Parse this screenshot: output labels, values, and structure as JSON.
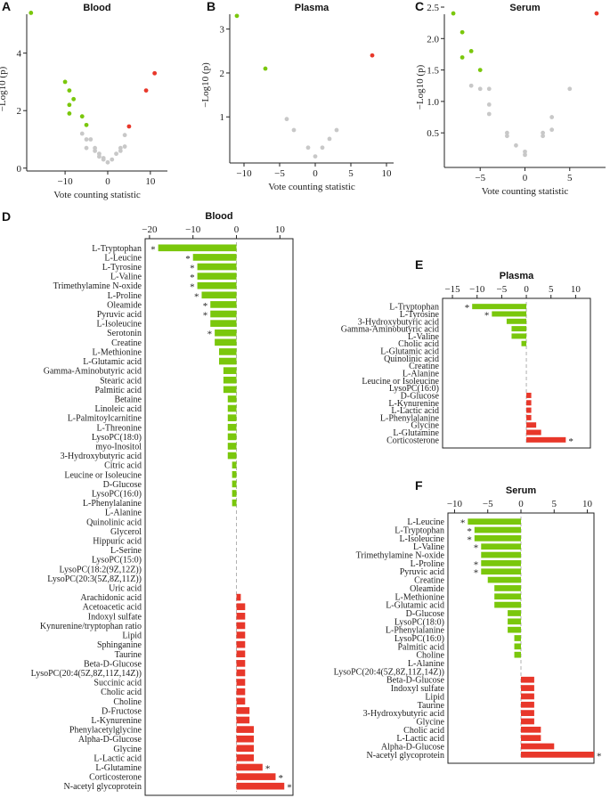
{
  "colors": {
    "down": "#7ac70c",
    "up": "#e8372a",
    "ns": "#c8c8c8",
    "axis": "#222222",
    "dash": "#b0b0b0"
  },
  "chart_data": [
    {
      "id": "A",
      "panel_label": "A",
      "type": "scatter",
      "title": "Blood",
      "xlabel": "Vote counting statistic",
      "ylabel": "−Log10 (p)",
      "xlim": [
        -19,
        14
      ],
      "ylim": [
        -0.1,
        5.6
      ],
      "xticks": [
        -10,
        0,
        10
      ],
      "xtick_labels": [
        "−10",
        "0",
        "10"
      ],
      "yticks": [
        0,
        2,
        4
      ],
      "ytick_labels": [
        "0",
        "2",
        "4"
      ],
      "points": [
        {
          "x": -18,
          "y": 5.4,
          "c": "down"
        },
        {
          "x": -10,
          "y": 3.0,
          "c": "down"
        },
        {
          "x": -9,
          "y": 2.7,
          "c": "down"
        },
        {
          "x": -8,
          "y": 2.4,
          "c": "down"
        },
        {
          "x": -9,
          "y": 2.2,
          "c": "down"
        },
        {
          "x": -9,
          "y": 1.9,
          "c": "down"
        },
        {
          "x": -6,
          "y": 1.8,
          "c": "down"
        },
        {
          "x": -5,
          "y": 1.5,
          "c": "down"
        },
        {
          "x": 11,
          "y": 3.3,
          "c": "up"
        },
        {
          "x": 9,
          "y": 2.7,
          "c": "up"
        },
        {
          "x": 5,
          "y": 1.45,
          "c": "up"
        },
        {
          "x": -6,
          "y": 1.2,
          "c": "ns"
        },
        {
          "x": -5,
          "y": 1.0,
          "c": "ns"
        },
        {
          "x": -4,
          "y": 1.0,
          "c": "ns"
        },
        {
          "x": -5,
          "y": 0.7,
          "c": "ns"
        },
        {
          "x": -3,
          "y": 0.7,
          "c": "ns"
        },
        {
          "x": -3,
          "y": 0.6,
          "c": "ns"
        },
        {
          "x": -2,
          "y": 0.5,
          "c": "ns"
        },
        {
          "x": -2,
          "y": 0.4,
          "c": "ns"
        },
        {
          "x": -1,
          "y": 0.35,
          "c": "ns"
        },
        {
          "x": -1,
          "y": 0.3,
          "c": "ns"
        },
        {
          "x": 0,
          "y": 0.2,
          "c": "ns"
        },
        {
          "x": 1,
          "y": 0.3,
          "c": "ns"
        },
        {
          "x": 2,
          "y": 0.5,
          "c": "ns"
        },
        {
          "x": 3,
          "y": 0.7,
          "c": "ns"
        },
        {
          "x": 4,
          "y": 0.75,
          "c": "ns"
        },
        {
          "x": 4,
          "y": 1.15,
          "c": "ns"
        },
        {
          "x": 3,
          "y": 0.6,
          "c": "ns"
        }
      ]
    },
    {
      "id": "B",
      "panel_label": "B",
      "type": "scatter",
      "title": "Plasma",
      "xlabel": "Vote counting statistic",
      "ylabel": "−Log10 (p)",
      "xlim": [
        -12,
        11
      ],
      "ylim": [
        -0.05,
        3.5
      ],
      "xticks": [
        -10,
        -5,
        0,
        5,
        10
      ],
      "xtick_labels": [
        "−10",
        "−5",
        "0",
        "5",
        "10"
      ],
      "yticks": [
        1,
        2,
        3
      ],
      "ytick_labels": [
        "1",
        "2",
        "3"
      ],
      "points": [
        {
          "x": -11,
          "y": 3.3,
          "c": "down"
        },
        {
          "x": -7,
          "y": 2.1,
          "c": "down"
        },
        {
          "x": 8,
          "y": 2.4,
          "c": "up"
        },
        {
          "x": -4,
          "y": 0.95,
          "c": "ns"
        },
        {
          "x": -3,
          "y": 0.7,
          "c": "ns"
        },
        {
          "x": -1,
          "y": 0.3,
          "c": "ns"
        },
        {
          "x": 0,
          "y": 0.1,
          "c": "ns"
        },
        {
          "x": 1,
          "y": 0.3,
          "c": "ns"
        },
        {
          "x": 2,
          "y": 0.5,
          "c": "ns"
        },
        {
          "x": 3,
          "y": 0.7,
          "c": "ns"
        }
      ]
    },
    {
      "id": "C",
      "panel_label": "C",
      "type": "scatter",
      "title": "Serum",
      "xlabel": "Vote counting statistic",
      "ylabel": "−Log10 (p)",
      "xlim": [
        -9,
        9
      ],
      "ylim": [
        -0.05,
        2.5
      ],
      "xticks": [
        -5,
        0,
        5
      ],
      "xtick_labels": [
        "−5",
        "0",
        "5"
      ],
      "yticks": [
        0.5,
        1.0,
        1.5,
        2.0,
        2.5
      ],
      "ytick_labels": [
        "0.5",
        "1.0",
        "1.5",
        "2.0",
        "2.5"
      ],
      "points": [
        {
          "x": -8,
          "y": 2.4,
          "c": "down"
        },
        {
          "x": -7,
          "y": 2.1,
          "c": "down"
        },
        {
          "x": -6,
          "y": 1.8,
          "c": "down"
        },
        {
          "x": -7,
          "y": 1.7,
          "c": "down"
        },
        {
          "x": -5,
          "y": 1.5,
          "c": "down"
        },
        {
          "x": 8,
          "y": 2.4,
          "c": "up"
        },
        {
          "x": -6,
          "y": 1.25,
          "c": "ns"
        },
        {
          "x": -5,
          "y": 1.2,
          "c": "ns"
        },
        {
          "x": -4,
          "y": 1.2,
          "c": "ns"
        },
        {
          "x": -4,
          "y": 0.95,
          "c": "ns"
        },
        {
          "x": -4,
          "y": 0.8,
          "c": "ns"
        },
        {
          "x": -2,
          "y": 0.5,
          "c": "ns"
        },
        {
          "x": -2,
          "y": 0.45,
          "c": "ns"
        },
        {
          "x": -1,
          "y": 0.3,
          "c": "ns"
        },
        {
          "x": 0,
          "y": 0.2,
          "c": "ns"
        },
        {
          "x": 0,
          "y": 0.15,
          "c": "ns"
        },
        {
          "x": 2,
          "y": 0.5,
          "c": "ns"
        },
        {
          "x": 2,
          "y": 0.45,
          "c": "ns"
        },
        {
          "x": 3,
          "y": 0.75,
          "c": "ns"
        },
        {
          "x": 3,
          "y": 0.55,
          "c": "ns"
        },
        {
          "x": 5,
          "y": 1.2,
          "c": "ns"
        }
      ]
    },
    {
      "id": "D",
      "panel_label": "D",
      "type": "bar",
      "orientation": "horizontal",
      "title": "Blood",
      "xlim": [
        -21,
        13
      ],
      "xticks": [
        -20,
        -10,
        0,
        10
      ],
      "xtick_labels": [
        "−20",
        "−10",
        "0",
        "10"
      ],
      "categories": [
        "L-Tryptophan",
        "L-Leucine",
        "L-Tyrosine",
        "L-Valine",
        "Trimethylamine N-oxide",
        "L-Proline",
        "Oleamide",
        "Pyruvic acid",
        "L-Isoleucine",
        "Serotonin",
        "Creatine",
        "L-Methionine",
        "L-Glutamic acid",
        "Gamma-Aminobutyric acid",
        "Stearic acid",
        "Palmitic acid",
        "Betaine",
        "Linoleic acid",
        "L-Palmitoylcarnitine",
        "L-Threonine",
        "LysoPC(18:0)",
        "myo-Inositol",
        "3-Hydroxybutyric acid",
        "Citric acid",
        "Leucine or Isoleucine",
        "D-Glucose",
        "LysoPC(16:0)",
        "L-Phenylalanine",
        "L-Alanine",
        "Quinolinic acid",
        "Glycerol",
        "Hippuric acid",
        "L-Serine",
        "LysoPC(15:0)",
        "LysoPC(18:2(9Z,12Z))",
        "LysoPC(20:3(5Z,8Z,11Z))",
        "Uric acid",
        "Arachidonic acid",
        "Acetoacetic acid",
        "Indoxyl sulfate",
        "Kynurenine/tryptophan ratio",
        "Lipid",
        "Sphinganine",
        "Taurine",
        "Beta-D-Glucose",
        "LysoPC(20:4(5Z,8Z,11Z,14Z))",
        "Succinic acid",
        "Cholic acid",
        "Choline",
        "D-Fructose",
        "L-Kynurenine",
        "Phenylacetylglycine",
        "Alpha-D-Glucose",
        "Glycine",
        "L-Lactic acid",
        "L-Glutamine",
        "Corticosterone",
        "N-acetyl glycoprotein"
      ],
      "values": [
        -18,
        -10,
        -9,
        -9,
        -9,
        -8,
        -6,
        -6,
        -6,
        -5,
        -5,
        -4,
        -4,
        -3,
        -3,
        -3,
        -2,
        -2,
        -2,
        -2,
        -2,
        -2,
        -2,
        -1,
        -1,
        -1,
        -1,
        -1,
        0,
        0,
        0,
        0,
        0,
        0,
        0,
        0,
        0,
        1,
        2,
        2,
        2,
        2,
        2,
        2,
        2,
        2,
        2,
        2,
        2,
        3,
        3,
        4,
        4,
        4,
        4,
        6,
        9,
        11
      ],
      "significant": [
        "L-Tryptophan",
        "L-Leucine",
        "L-Tyrosine",
        "L-Valine",
        "Trimethylamine N-oxide",
        "L-Proline",
        "Oleamide",
        "Pyruvic acid",
        "Serotonin",
        "L-Glutamine",
        "Corticosterone",
        "N-acetyl glycoprotein"
      ],
      "significant_marker": "*"
    },
    {
      "id": "E",
      "panel_label": "E",
      "type": "bar",
      "orientation": "horizontal",
      "title": "Plasma",
      "xlim": [
        -17,
        13
      ],
      "xticks": [
        -15,
        -10,
        -5,
        0,
        5,
        10
      ],
      "xtick_labels": [
        "−15",
        "−10",
        "−5",
        "0",
        "5",
        "10"
      ],
      "categories": [
        "L-Tryptophan",
        "L-Tyrosine",
        "3-Hydroxybutyric acid",
        "Gamma-Aminobutyric acid",
        "L-Valine",
        "Cholic acid",
        "L-Glutamic acid",
        "Quinolinic acid",
        "Creatine",
        "L-Alanine",
        "Leucine or Isoleucine",
        "LysoPC(16:0)",
        "D-Glucose",
        "L-Kynurenine",
        "L-Lactic acid",
        "L-Phenylalanine",
        "Glycine",
        "L-Glutamine",
        "Corticosterone"
      ],
      "values": [
        -11,
        -7,
        -4,
        -3,
        -3,
        -1,
        0,
        0,
        0,
        0,
        0,
        0,
        1,
        1,
        1,
        1,
        2,
        3,
        8
      ],
      "significant": [
        "L-Tryptophan",
        "L-Tyrosine",
        "Corticosterone"
      ],
      "significant_marker": "*"
    },
    {
      "id": "F",
      "panel_label": "F",
      "type": "bar",
      "orientation": "horizontal",
      "title": "Serum",
      "xlim": [
        -11,
        11
      ],
      "xticks": [
        -10,
        -5,
        0,
        5,
        10
      ],
      "xtick_labels": [
        "−10",
        "−5",
        "0",
        "5",
        "10"
      ],
      "categories": [
        "L-Leucine",
        "L-Tryptophan",
        "L-Isoleucine",
        "L-Valine",
        "Trimethylamine N-oxide",
        "L-Proline",
        "Pyruvic acid",
        "Creatine",
        "Oleamide",
        "L-Methionine",
        "L-Glutamic acid",
        "D-Glucose",
        "LysoPC(18:0)",
        "L-Phenylalanine",
        "LysoPC(16:0)",
        "Palmitic acid",
        "Choline",
        "L-Alanine",
        "LysoPC(20:4(5Z,8Z,11Z,14Z))",
        "Beta-D-Glucose",
        "Indoxyl sulfate",
        "Lipid",
        "Taurine",
        "3-Hydroxybutyric acid",
        "Glycine",
        "Cholic acid",
        "L-Lactic acid",
        "Alpha-D-Glucose",
        "N-acetyl glycoprotein"
      ],
      "values": [
        -8,
        -7,
        -7,
        -6,
        -6,
        -6,
        -6,
        -5,
        -4,
        -4,
        -4,
        -2,
        -2,
        -2,
        -1,
        -1,
        -1,
        0,
        0,
        2,
        2,
        2,
        2,
        2,
        2,
        3,
        3,
        5,
        11
      ],
      "significant": [
        "L-Leucine",
        "L-Tryptophan",
        "L-Isoleucine",
        "L-Valine",
        "L-Proline",
        "Pyruvic acid",
        "N-acetyl glycoprotein"
      ],
      "significant_marker": "*"
    }
  ]
}
